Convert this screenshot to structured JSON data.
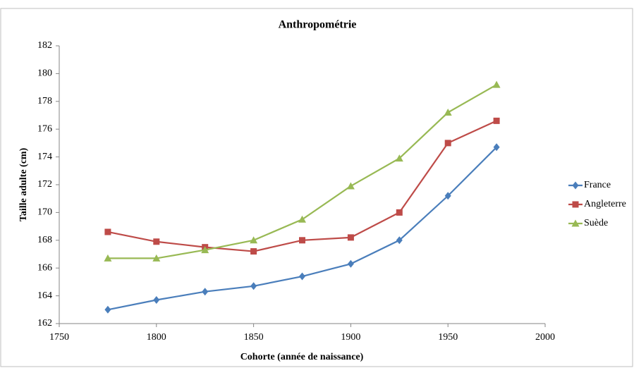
{
  "chart_data": {
    "type": "line",
    "title": "Anthropométrie",
    "x_label": "Cohorte (année de naissance)",
    "y_label": "Taille adulte (cm)",
    "x": [
      1775,
      1800,
      1825,
      1850,
      1875,
      1900,
      1925,
      1950,
      1975
    ],
    "series": [
      {
        "name": "France",
        "color": "#4a7ebb",
        "marker": "diamond",
        "values": [
          163.0,
          163.7,
          164.3,
          164.7,
          165.4,
          166.3,
          168.0,
          171.2,
          174.7
        ]
      },
      {
        "name": "Angleterre",
        "color": "#be4b48",
        "marker": "square",
        "values": [
          168.6,
          167.9,
          167.5,
          167.2,
          168.0,
          168.2,
          170.0,
          175.0,
          176.6
        ]
      },
      {
        "name": "Suède",
        "color": "#98b954",
        "marker": "triangle",
        "values": [
          166.7,
          166.7,
          167.3,
          168.0,
          169.5,
          171.9,
          173.9,
          177.2,
          179.2
        ]
      }
    ],
    "xlim": [
      1750,
      2000
    ],
    "xticks": [
      1750,
      1800,
      1850,
      1900,
      1950,
      2000
    ],
    "ylim": [
      162,
      182
    ],
    "yticks": [
      162,
      164,
      166,
      168,
      170,
      172,
      174,
      176,
      178,
      180,
      182
    ],
    "grid": false,
    "legend": "right"
  }
}
